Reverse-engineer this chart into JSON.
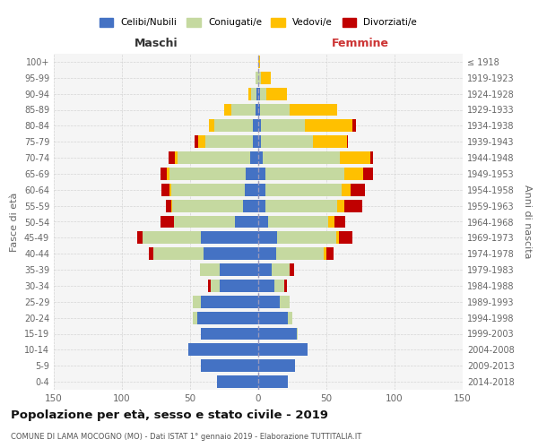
{
  "age_groups": [
    "0-4",
    "5-9",
    "10-14",
    "15-19",
    "20-24",
    "25-29",
    "30-34",
    "35-39",
    "40-44",
    "45-49",
    "50-54",
    "55-59",
    "60-64",
    "65-69",
    "70-74",
    "75-79",
    "80-84",
    "85-89",
    "90-94",
    "95-99",
    "100+"
  ],
  "birth_years": [
    "2014-2018",
    "2009-2013",
    "2004-2008",
    "1999-2003",
    "1994-1998",
    "1989-1993",
    "1984-1988",
    "1979-1983",
    "1974-1978",
    "1969-1973",
    "1964-1968",
    "1959-1963",
    "1954-1958",
    "1949-1953",
    "1944-1948",
    "1939-1943",
    "1934-1938",
    "1929-1933",
    "1924-1928",
    "1919-1923",
    "≤ 1918"
  ],
  "males": {
    "celibi": [
      30,
      42,
      51,
      42,
      45,
      42,
      28,
      28,
      40,
      42,
      17,
      11,
      10,
      9,
      6,
      4,
      4,
      2,
      1,
      0,
      0
    ],
    "coniugati": [
      0,
      0,
      0,
      0,
      3,
      6,
      7,
      15,
      37,
      43,
      45,
      52,
      54,
      56,
      53,
      35,
      28,
      18,
      4,
      2,
      0
    ],
    "vedove": [
      0,
      0,
      0,
      0,
      0,
      0,
      0,
      0,
      0,
      0,
      0,
      1,
      1,
      2,
      2,
      5,
      4,
      5,
      2,
      0,
      0
    ],
    "divorziate": [
      0,
      0,
      0,
      0,
      0,
      0,
      2,
      0,
      3,
      4,
      10,
      4,
      6,
      5,
      5,
      3,
      0,
      0,
      0,
      0,
      0
    ]
  },
  "females": {
    "nubili": [
      22,
      27,
      36,
      28,
      22,
      16,
      12,
      10,
      13,
      14,
      7,
      5,
      5,
      5,
      3,
      2,
      2,
      1,
      1,
      0,
      0
    ],
    "coniugate": [
      0,
      0,
      0,
      1,
      3,
      7,
      7,
      13,
      35,
      43,
      44,
      53,
      56,
      58,
      57,
      38,
      32,
      22,
      5,
      2,
      0
    ],
    "vedove": [
      0,
      0,
      0,
      0,
      0,
      0,
      0,
      0,
      2,
      2,
      5,
      5,
      7,
      14,
      22,
      25,
      35,
      35,
      15,
      7,
      1
    ],
    "divorziate": [
      0,
      0,
      0,
      0,
      0,
      0,
      2,
      3,
      5,
      10,
      8,
      13,
      10,
      7,
      2,
      1,
      3,
      0,
      0,
      0,
      0
    ]
  },
  "colors": {
    "celibi": "#4472c4",
    "coniugati": "#c5d9a0",
    "vedove": "#ffc000",
    "divorziate": "#c00000"
  },
  "title": "Popolazione per età, sesso e stato civile - 2019",
  "subtitle": "COMUNE DI LAMA MOCOGNO (MO) - Dati ISTAT 1° gennaio 2019 - Elaborazione TUTTITALIA.IT",
  "xlabel_left": "Maschi",
  "xlabel_right": "Femmine",
  "ylabel_left": "Fasce di età",
  "ylabel_right": "Anni di nascita",
  "xlim": 150,
  "legend_labels": [
    "Celibi/Nubili",
    "Coniugati/e",
    "Vedovi/e",
    "Divorziati/e"
  ],
  "background_color": "#f5f5f5",
  "grid_color": "#cccccc"
}
